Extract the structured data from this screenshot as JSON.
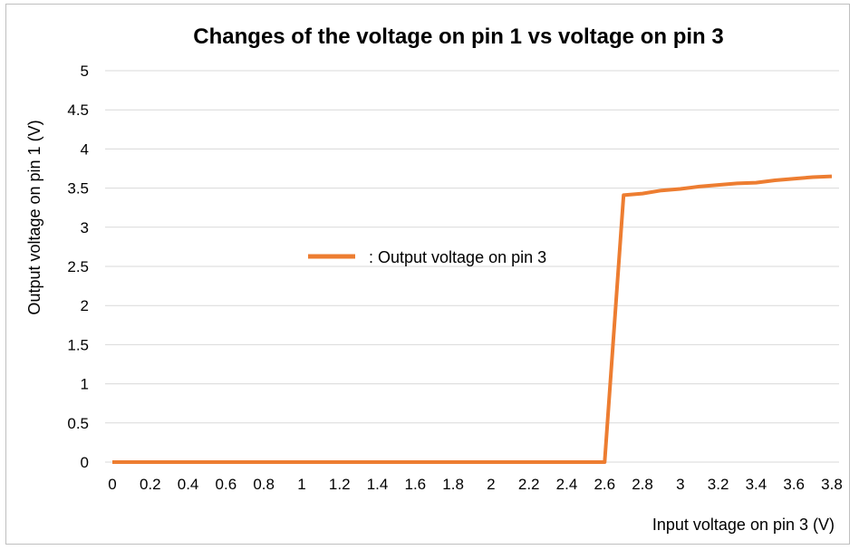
{
  "chart_data": {
    "type": "line",
    "title": "Changes of the voltage on pin 1 vs voltage on pin 3",
    "xlabel": "Input voltage on pin 3 (V)",
    "ylabel": "Output voltage on pin 1 (V)",
    "x_ticks": [
      "0",
      "0.2",
      "0.4",
      "0.6",
      "0.8",
      "1",
      "1.2",
      "1.4",
      "1.6",
      "1.8",
      "2",
      "2.2",
      "2.4",
      "2.6",
      "2.8",
      "3",
      "3.2",
      "3.4",
      "3.6",
      "3.8"
    ],
    "y_ticks": [
      "0",
      "0.5",
      "1",
      "1.5",
      "2",
      "2.5",
      "3",
      "3.5",
      "4",
      "4.5",
      "5"
    ],
    "xlim": [
      0,
      3.8
    ],
    "ylim": [
      0,
      5
    ],
    "grid": true,
    "legend_placement": "center",
    "series": [
      {
        "name": ": Output voltage on pin 3",
        "color": "#ED7D31",
        "x": [
          0,
          0.2,
          0.4,
          0.6,
          0.8,
          1.0,
          1.2,
          1.4,
          1.6,
          1.8,
          2.0,
          2.2,
          2.4,
          2.6,
          2.7,
          2.8,
          2.9,
          3.0,
          3.1,
          3.2,
          3.3,
          3.4,
          3.5,
          3.6,
          3.7,
          3.8
        ],
        "y": [
          0,
          0,
          0,
          0,
          0,
          0,
          0,
          0,
          0,
          0,
          0,
          0,
          0,
          0,
          3.41,
          3.43,
          3.47,
          3.49,
          3.52,
          3.54,
          3.56,
          3.57,
          3.6,
          3.62,
          3.64,
          3.65
        ]
      }
    ]
  }
}
